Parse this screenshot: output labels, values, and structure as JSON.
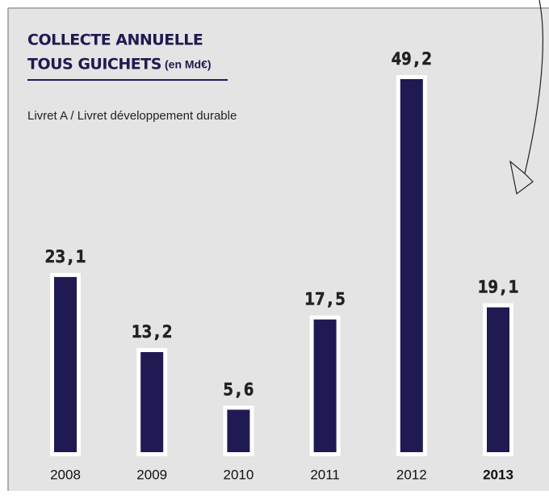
{
  "chart_data": {
    "type": "bar",
    "title": [
      "COLLECTE ANNUELLE",
      "TOUS GUICHETS"
    ],
    "title_note": "(en Md€)",
    "subtitle": "Livret A / Livret développement durable",
    "categories": [
      "2008",
      "2009",
      "2010",
      "2011",
      "2012",
      "2013"
    ],
    "values": [
      23.1,
      13.2,
      5.6,
      17.5,
      49.2,
      19.1
    ],
    "value_labels": [
      "23,1",
      "13,2",
      "5,6",
      "17,5",
      "49,2",
      "19,1"
    ],
    "highlight_index": 5,
    "color": "#1f1a52"
  }
}
